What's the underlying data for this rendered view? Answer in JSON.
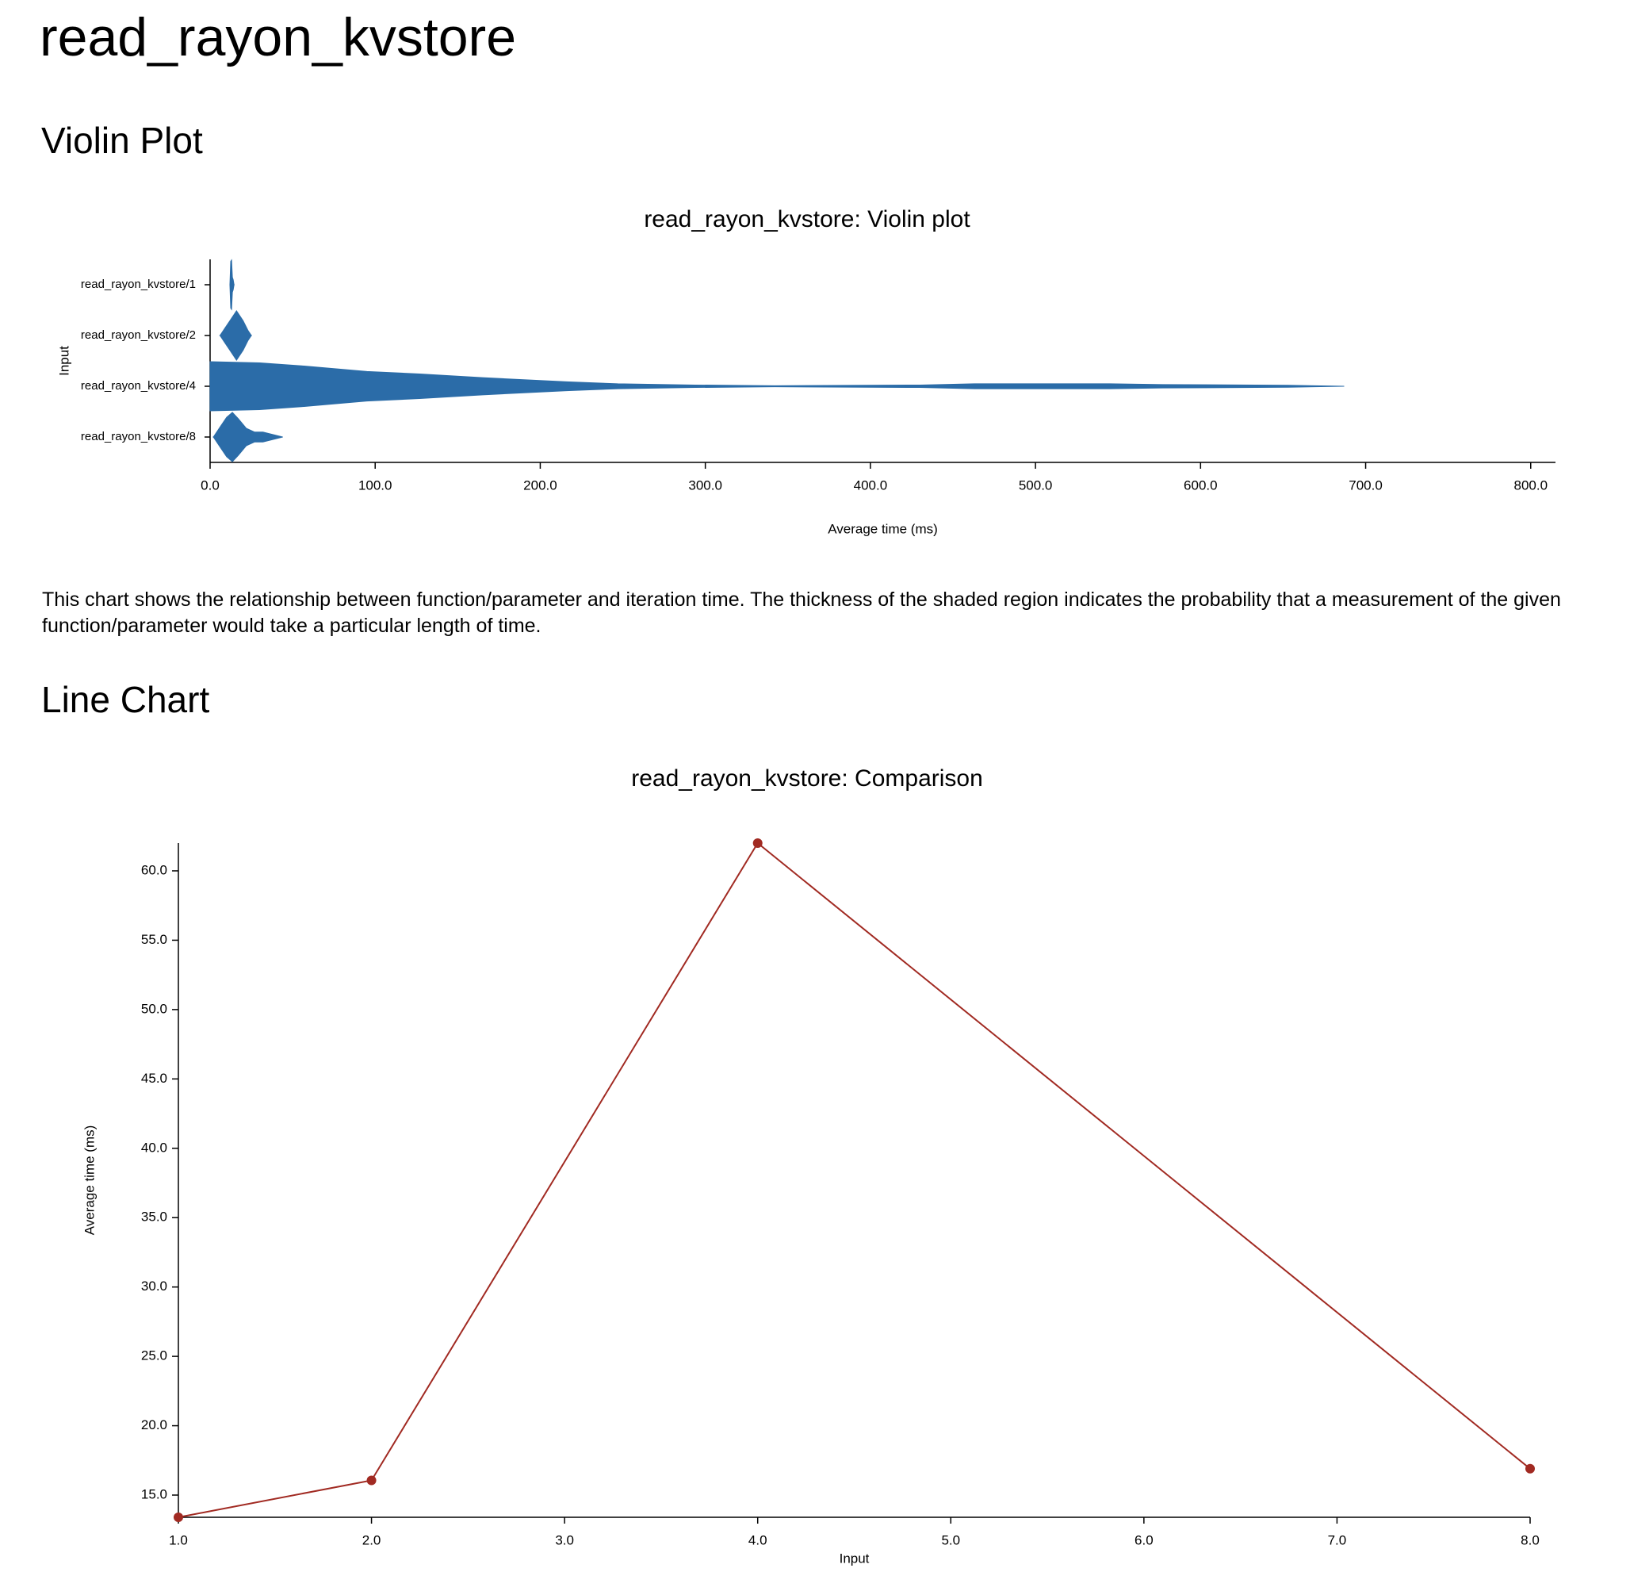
{
  "title": "read_rayon_kvstore",
  "sections": [
    {
      "heading": "Violin Plot"
    },
    {
      "heading": "Line Chart"
    }
  ],
  "description": "This chart shows the relationship between function/parameter and iteration time. The thickness of the shaded region indicates the probability that a measurement of the given function/parameter would take a particular length of time.",
  "chart_data": [
    {
      "type": "violin",
      "title": "read_rayon_kvstore: Violin plot",
      "xlabel": "Average time (ms)",
      "ylabel": "Input",
      "color": "#2b6ca8",
      "xlim": [
        0,
        815
      ],
      "xticks": [
        {
          "value": 0,
          "label": "0.0"
        },
        {
          "value": 100,
          "label": "100.0"
        },
        {
          "value": 200,
          "label": "200.0"
        },
        {
          "value": 300,
          "label": "300.0"
        },
        {
          "value": 400,
          "label": "400.0"
        },
        {
          "value": 500,
          "label": "500.0"
        },
        {
          "value": 600,
          "label": "600.0"
        },
        {
          "value": 700,
          "label": "700.0"
        },
        {
          "value": 800,
          "label": "800.0"
        }
      ],
      "series": [
        {
          "name": "read_rayon_kvstore/1",
          "x": [
            12,
            12.5,
            13,
            13.5,
            14,
            14.5
          ],
          "density": [
            0,
            0.95,
            1,
            0.3,
            0.2,
            0
          ]
        },
        {
          "name": "read_rayon_kvstore/2",
          "x": [
            6,
            9,
            12,
            16,
            20,
            23,
            25
          ],
          "density": [
            0,
            0.3,
            0.6,
            1,
            0.6,
            0.2,
            0
          ]
        },
        {
          "name": "read_rayon_kvstore/4",
          "x": [
            0,
            30,
            57,
            95,
            127,
            165,
            216,
            247,
            294,
            342,
            430,
            463,
            545,
            577,
            653,
            687
          ],
          "density": [
            1,
            0.95,
            0.82,
            0.6,
            0.5,
            0.35,
            0.18,
            0.1,
            0.05,
            0.02,
            0.05,
            0.1,
            0.1,
            0.07,
            0.04,
            0
          ]
        },
        {
          "name": "read_rayon_kvstore/8",
          "x": [
            2,
            6,
            10,
            13.5,
            17,
            22,
            27,
            32,
            38,
            44
          ],
          "density": [
            0,
            0.4,
            0.8,
            1,
            0.75,
            0.35,
            0.2,
            0.2,
            0.1,
            0
          ]
        }
      ]
    },
    {
      "type": "line",
      "title": "read_rayon_kvstore: Comparison",
      "xlabel": "Input",
      "ylabel": "Average time (ms)",
      "color": "#a12a22",
      "x": [
        1,
        2,
        4,
        8
      ],
      "values": [
        13.4,
        16.06,
        62.0,
        16.9
      ],
      "xlim": [
        1,
        8
      ],
      "xticks": [
        {
          "value": 1,
          "label": "1.0"
        },
        {
          "value": 2,
          "label": "2.0"
        },
        {
          "value": 3,
          "label": "3.0"
        },
        {
          "value": 4,
          "label": "4.0"
        },
        {
          "value": 5,
          "label": "5.0"
        },
        {
          "value": 6,
          "label": "6.0"
        },
        {
          "value": 7,
          "label": "7.0"
        },
        {
          "value": 8,
          "label": "8.0"
        }
      ],
      "ylim": [
        13.4,
        62.0
      ],
      "yticks": [
        {
          "value": 15,
          "label": "15.0"
        },
        {
          "value": 20,
          "label": "20.0"
        },
        {
          "value": 25,
          "label": "25.0"
        },
        {
          "value": 30,
          "label": "30.0"
        },
        {
          "value": 35,
          "label": "35.0"
        },
        {
          "value": 40,
          "label": "40.0"
        },
        {
          "value": 45,
          "label": "45.0"
        },
        {
          "value": 50,
          "label": "50.0"
        },
        {
          "value": 55,
          "label": "55.0"
        },
        {
          "value": 60,
          "label": "60.0"
        }
      ]
    }
  ]
}
